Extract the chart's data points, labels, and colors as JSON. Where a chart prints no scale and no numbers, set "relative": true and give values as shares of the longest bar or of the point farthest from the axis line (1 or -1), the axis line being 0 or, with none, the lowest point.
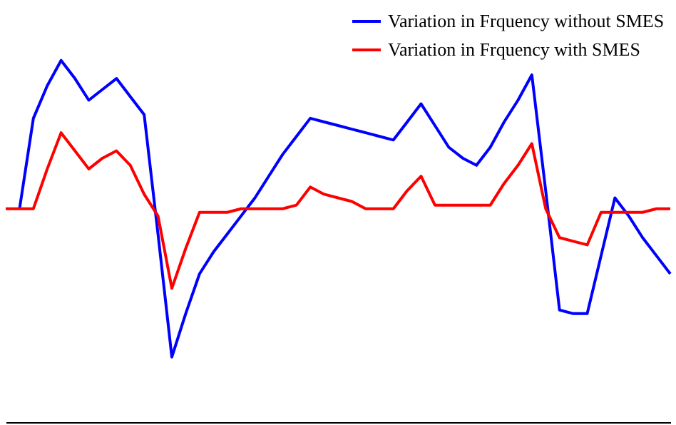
{
  "chart_data": {
    "type": "line",
    "relative": true,
    "legend": "top right",
    "categories": [
      null,
      null,
      null,
      null,
      null,
      null,
      null,
      null,
      null,
      null,
      null,
      null,
      null,
      null,
      null,
      null,
      null,
      null,
      null,
      null,
      null,
      null,
      null,
      null,
      null,
      null,
      null,
      null,
      null,
      null,
      null,
      null,
      null,
      null,
      null,
      null,
      null,
      null,
      null,
      null,
      null,
      null,
      null,
      null,
      null,
      null,
      null,
      null,
      null
    ],
    "series": [
      {
        "name": "Variation in Frquency without SMES",
        "color": "#0000ff",
        "values": [
          null,
          0.59,
          0.84,
          0.93,
          1.0,
          0.95,
          0.89,
          0.92,
          0.95,
          0.9,
          0.85,
          0.52,
          0.18,
          0.3,
          0.41,
          0.47,
          0.52,
          0.57,
          0.62,
          0.68,
          0.74,
          0.79,
          0.84,
          0.83,
          0.82,
          0.81,
          0.8,
          0.79,
          0.78,
          0.83,
          0.88,
          0.82,
          0.76,
          0.73,
          0.71,
          0.76,
          0.83,
          0.89,
          0.96,
          0.64,
          0.31,
          0.3,
          0.3,
          0.46,
          0.62,
          0.57,
          0.51,
          0.46,
          0.41
        ]
      },
      {
        "name": "Variation in Frquency with SMES",
        "color": "#ff0000",
        "values": [
          0.59,
          0.59,
          0.59,
          0.7,
          0.8,
          0.75,
          0.7,
          0.73,
          0.75,
          0.71,
          0.63,
          0.57,
          0.37,
          0.48,
          0.58,
          0.58,
          0.58,
          0.59,
          0.59,
          0.59,
          0.59,
          0.6,
          0.65,
          0.63,
          0.62,
          0.61,
          0.59,
          0.59,
          0.59,
          0.64,
          0.68,
          0.6,
          0.6,
          0.6,
          0.6,
          0.6,
          0.66,
          0.71,
          0.77,
          0.59,
          0.51,
          0.5,
          0.49,
          0.58,
          0.58,
          0.58,
          0.58,
          0.59,
          0.59
        ]
      }
    ]
  }
}
